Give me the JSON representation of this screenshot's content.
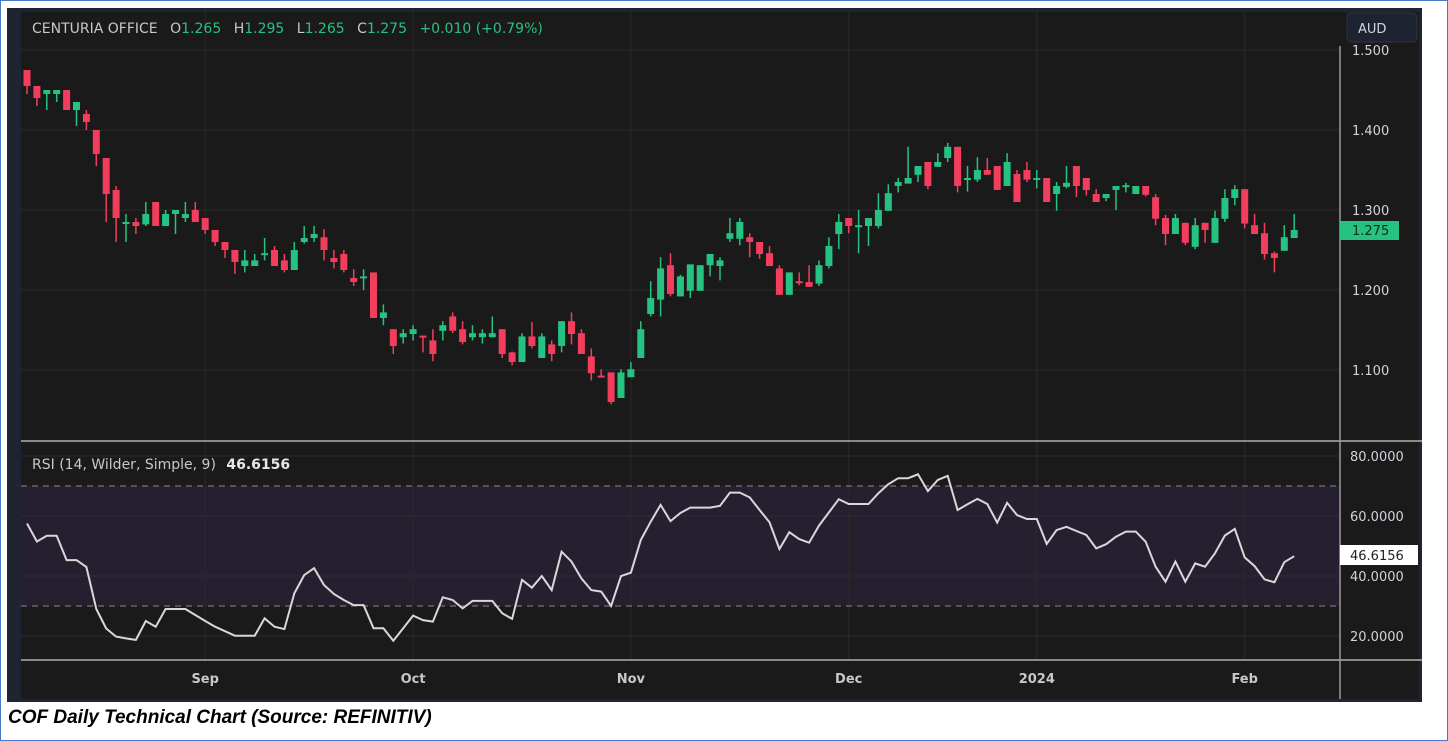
{
  "header": {
    "symbol": "CENTURIA OFFICE",
    "o_label": "O",
    "o_value": "1.265",
    "h_label": "H",
    "h_value": "1.295",
    "l_label": "L",
    "l_value": "1.265",
    "c_label": "C",
    "c_value": "1.275",
    "change": "+0.010 (+0.79%)"
  },
  "currency_button": "AUD",
  "last_price_label": "1.275",
  "rsi_legend": {
    "name": "RSI (14, Wilder, Simple, 9)",
    "value": "46.6156"
  },
  "rsi_last_label": "46.6156",
  "caption": "COF Daily Technical Chart (Source: REFINITIV)",
  "colors": {
    "up": "#26c281",
    "down": "#f23d5c",
    "background": "#1a1a1a",
    "rsi_line": "#d8d8d8",
    "rsi_band": "#251f30",
    "frame": "#1f2433"
  },
  "chart_data": [
    {
      "type": "candlestick",
      "title": "CENTURIA OFFICE",
      "ylabel": "AUD",
      "ylim": [
        1.0125,
        1.5
      ],
      "y_ticks": [
        "1.500",
        "1.400",
        "1.300",
        "1.200",
        "1.100"
      ],
      "x_ticks": [
        {
          "label": "Sep",
          "candle": 18
        },
        {
          "label": "Oct",
          "candle": 39
        },
        {
          "label": "Nov",
          "candle": 61
        },
        {
          "label": "Dec",
          "candle": 83
        },
        {
          "label": "2024",
          "candle": 102
        },
        {
          "label": "Feb",
          "candle": 123
        }
      ],
      "last_price": 1.275,
      "ohlc": [
        [
          1.475,
          1.475,
          1.445,
          1.455
        ],
        [
          1.455,
          1.455,
          1.43,
          1.44
        ],
        [
          1.445,
          1.45,
          1.425,
          1.45
        ],
        [
          1.445,
          1.45,
          1.435,
          1.45
        ],
        [
          1.45,
          1.45,
          1.425,
          1.425
        ],
        [
          1.425,
          1.435,
          1.405,
          1.435
        ],
        [
          1.42,
          1.425,
          1.4,
          1.41
        ],
        [
          1.4,
          1.4,
          1.355,
          1.37
        ],
        [
          1.365,
          1.365,
          1.285,
          1.32
        ],
        [
          1.325,
          1.33,
          1.26,
          1.29
        ],
        [
          1.285,
          1.295,
          1.26,
          1.285
        ],
        [
          1.285,
          1.29,
          1.27,
          1.28
        ],
        [
          1.282,
          1.31,
          1.28,
          1.295
        ],
        [
          1.31,
          1.31,
          1.28,
          1.28
        ],
        [
          1.28,
          1.3,
          1.28,
          1.295
        ],
        [
          1.295,
          1.3,
          1.27,
          1.3
        ],
        [
          1.29,
          1.31,
          1.285,
          1.295
        ],
        [
          1.3,
          1.31,
          1.285,
          1.285
        ],
        [
          1.29,
          1.29,
          1.27,
          1.275
        ],
        [
          1.275,
          1.275,
          1.255,
          1.26
        ],
        [
          1.26,
          1.26,
          1.24,
          1.25
        ],
        [
          1.25,
          1.25,
          1.22,
          1.235
        ],
        [
          1.23,
          1.25,
          1.222,
          1.237
        ],
        [
          1.23,
          1.245,
          1.23,
          1.237
        ],
        [
          1.245,
          1.265,
          1.237,
          1.246
        ],
        [
          1.25,
          1.255,
          1.23,
          1.23
        ],
        [
          1.237,
          1.245,
          1.222,
          1.225
        ],
        [
          1.225,
          1.26,
          1.225,
          1.25
        ],
        [
          1.26,
          1.28,
          1.258,
          1.265
        ],
        [
          1.265,
          1.28,
          1.26,
          1.27
        ],
        [
          1.266,
          1.276,
          1.237,
          1.25
        ],
        [
          1.24,
          1.25,
          1.227,
          1.235
        ],
        [
          1.245,
          1.25,
          1.222,
          1.225
        ],
        [
          1.215,
          1.226,
          1.205,
          1.21
        ],
        [
          1.215,
          1.226,
          1.2,
          1.217
        ],
        [
          1.222,
          1.222,
          1.165,
          1.165
        ],
        [
          1.165,
          1.182,
          1.156,
          1.172
        ],
        [
          1.151,
          1.151,
          1.12,
          1.13
        ],
        [
          1.141,
          1.151,
          1.133,
          1.146
        ],
        [
          1.145,
          1.156,
          1.137,
          1.151
        ],
        [
          1.143,
          1.143,
          1.122,
          1.141
        ],
        [
          1.137,
          1.151,
          1.111,
          1.12
        ],
        [
          1.149,
          1.161,
          1.137,
          1.156
        ],
        [
          1.167,
          1.172,
          1.146,
          1.149
        ],
        [
          1.151,
          1.161,
          1.132,
          1.135
        ],
        [
          1.141,
          1.156,
          1.137,
          1.146
        ],
        [
          1.141,
          1.151,
          1.133,
          1.146
        ],
        [
          1.141,
          1.167,
          1.141,
          1.146
        ],
        [
          1.151,
          1.151,
          1.115,
          1.12
        ],
        [
          1.122,
          1.123,
          1.106,
          1.11
        ],
        [
          1.11,
          1.146,
          1.11,
          1.142
        ],
        [
          1.142,
          1.16,
          1.127,
          1.13
        ],
        [
          1.115,
          1.146,
          1.115,
          1.142
        ],
        [
          1.132,
          1.137,
          1.111,
          1.12
        ],
        [
          1.13,
          1.161,
          1.122,
          1.161
        ],
        [
          1.161,
          1.172,
          1.132,
          1.145
        ],
        [
          1.146,
          1.151,
          1.12,
          1.12
        ],
        [
          1.117,
          1.127,
          1.087,
          1.096
        ],
        [
          1.093,
          1.101,
          1.091,
          1.091
        ],
        [
          1.097,
          1.097,
          1.057,
          1.06
        ],
        [
          1.065,
          1.101,
          1.065,
          1.097
        ],
        [
          1.091,
          1.11,
          1.091,
          1.101
        ],
        [
          1.115,
          1.161,
          1.115,
          1.151
        ],
        [
          1.17,
          1.211,
          1.167,
          1.19
        ],
        [
          1.188,
          1.241,
          1.167,
          1.227
        ],
        [
          1.231,
          1.246,
          1.192,
          1.195
        ],
        [
          1.192,
          1.219,
          1.192,
          1.217
        ],
        [
          1.199,
          1.232,
          1.19,
          1.232
        ],
        [
          1.199,
          1.231,
          1.199,
          1.231
        ],
        [
          1.231,
          1.245,
          1.217,
          1.245
        ],
        [
          1.23,
          1.241,
          1.212,
          1.237
        ],
        [
          1.264,
          1.29,
          1.26,
          1.271
        ],
        [
          1.264,
          1.29,
          1.256,
          1.285
        ],
        [
          1.266,
          1.271,
          1.241,
          1.26
        ],
        [
          1.26,
          1.26,
          1.239,
          1.245
        ],
        [
          1.246,
          1.255,
          1.23,
          1.23
        ],
        [
          1.227,
          1.231,
          1.194,
          1.194
        ],
        [
          1.194,
          1.222,
          1.194,
          1.222
        ],
        [
          1.211,
          1.222,
          1.206,
          1.21
        ],
        [
          1.21,
          1.231,
          1.204,
          1.204
        ],
        [
          1.208,
          1.237,
          1.205,
          1.231
        ],
        [
          1.23,
          1.266,
          1.227,
          1.255
        ],
        [
          1.27,
          1.295,
          1.251,
          1.285
        ],
        [
          1.29,
          1.29,
          1.271,
          1.28
        ],
        [
          1.28,
          1.3,
          1.246,
          1.281
        ],
        [
          1.28,
          1.29,
          1.255,
          1.29
        ],
        [
          1.28,
          1.321,
          1.277,
          1.3
        ],
        [
          1.299,
          1.332,
          1.299,
          1.321
        ],
        [
          1.33,
          1.34,
          1.322,
          1.335
        ],
        [
          1.333,
          1.379,
          1.333,
          1.34
        ],
        [
          1.344,
          1.355,
          1.335,
          1.355
        ],
        [
          1.36,
          1.36,
          1.326,
          1.33
        ],
        [
          1.354,
          1.371,
          1.354,
          1.36
        ],
        [
          1.365,
          1.384,
          1.36,
          1.379
        ],
        [
          1.379,
          1.379,
          1.322,
          1.33
        ],
        [
          1.339,
          1.355,
          1.323,
          1.34
        ],
        [
          1.338,
          1.366,
          1.335,
          1.35
        ],
        [
          1.35,
          1.365,
          1.344,
          1.344
        ],
        [
          1.355,
          1.355,
          1.325,
          1.325
        ],
        [
          1.33,
          1.371,
          1.33,
          1.36
        ],
        [
          1.345,
          1.35,
          1.31,
          1.31
        ],
        [
          1.35,
          1.36,
          1.335,
          1.338
        ],
        [
          1.339,
          1.35,
          1.327,
          1.34
        ],
        [
          1.34,
          1.34,
          1.31,
          1.31
        ],
        [
          1.32,
          1.335,
          1.299,
          1.33
        ],
        [
          1.329,
          1.355,
          1.327,
          1.334
        ],
        [
          1.355,
          1.355,
          1.316,
          1.33
        ],
        [
          1.34,
          1.34,
          1.318,
          1.325
        ],
        [
          1.32,
          1.326,
          1.31,
          1.31
        ],
        [
          1.315,
          1.32,
          1.311,
          1.32
        ],
        [
          1.325,
          1.33,
          1.3,
          1.33
        ],
        [
          1.33,
          1.334,
          1.322,
          1.331
        ],
        [
          1.32,
          1.33,
          1.32,
          1.33
        ],
        [
          1.33,
          1.33,
          1.317,
          1.319
        ],
        [
          1.316,
          1.32,
          1.281,
          1.289
        ],
        [
          1.29,
          1.294,
          1.256,
          1.27
        ],
        [
          1.27,
          1.295,
          1.27,
          1.29
        ],
        [
          1.284,
          1.284,
          1.256,
          1.259
        ],
        [
          1.254,
          1.29,
          1.251,
          1.281
        ],
        [
          1.284,
          1.284,
          1.259,
          1.275
        ],
        [
          1.259,
          1.299,
          1.259,
          1.29
        ],
        [
          1.289,
          1.326,
          1.285,
          1.315
        ],
        [
          1.315,
          1.331,
          1.306,
          1.326
        ],
        [
          1.326,
          1.326,
          1.277,
          1.283
        ],
        [
          1.281,
          1.295,
          1.27,
          1.27
        ],
        [
          1.271,
          1.284,
          1.238,
          1.245
        ],
        [
          1.246,
          1.248,
          1.222,
          1.24
        ],
        [
          1.249,
          1.281,
          1.249,
          1.266
        ],
        [
          1.265,
          1.295,
          1.265,
          1.275
        ]
      ]
    },
    {
      "type": "line",
      "title": "RSI (14, Wilder, Simple, 9)",
      "ylim": [
        10,
        85
      ],
      "y_ticks": [
        "80.0000",
        "60.0000",
        "40.0000",
        "20.0000"
      ],
      "band": [
        30,
        70
      ],
      "last_value": 46.6156,
      "values": [
        57.5,
        51.5,
        53.4,
        53.4,
        45.3,
        45.3,
        43,
        29,
        22.5,
        19.8,
        19.2,
        18.7,
        25,
        23.1,
        29,
        29,
        29,
        27,
        25,
        23.1,
        21.6,
        20.1,
        20.1,
        20.1,
        25.9,
        23.1,
        22.3,
        34.2,
        40.3,
        42.6,
        37,
        34,
        32,
        30.3,
        30.3,
        22.6,
        22.6,
        18.4,
        22.6,
        26.8,
        25.3,
        24.8,
        32.9,
        32,
        29.2,
        31.7,
        31.7,
        31.7,
        27.6,
        25.7,
        38.7,
        36.1,
        40,
        35.3,
        48.1,
        44.8,
        39.2,
        35.3,
        34.8,
        30,
        40,
        41.1,
        52,
        58.1,
        63.7,
        58.3,
        61,
        62.8,
        62.8,
        62.8,
        63.4,
        67.8,
        67.8,
        66.2,
        62,
        57.9,
        49,
        54.6,
        52.3,
        51.1,
        56.8,
        61.2,
        65.6,
        64,
        64,
        64,
        67.6,
        70.6,
        72.6,
        72.6,
        73.9,
        68.3,
        72,
        73.4,
        62,
        63.9,
        65.7,
        64,
        57.8,
        64.4,
        60.3,
        59,
        59,
        50.7,
        55.3,
        56.4,
        55,
        53.7,
        49.2,
        50.6,
        53.1,
        54.8,
        54.8,
        51.4,
        43.1,
        38.1,
        44.8,
        38.1,
        44.2,
        43.1,
        47.6,
        53.5,
        55.7,
        46.2,
        43.3,
        38.9,
        37.9,
        44.6,
        46.6
      ]
    }
  ]
}
